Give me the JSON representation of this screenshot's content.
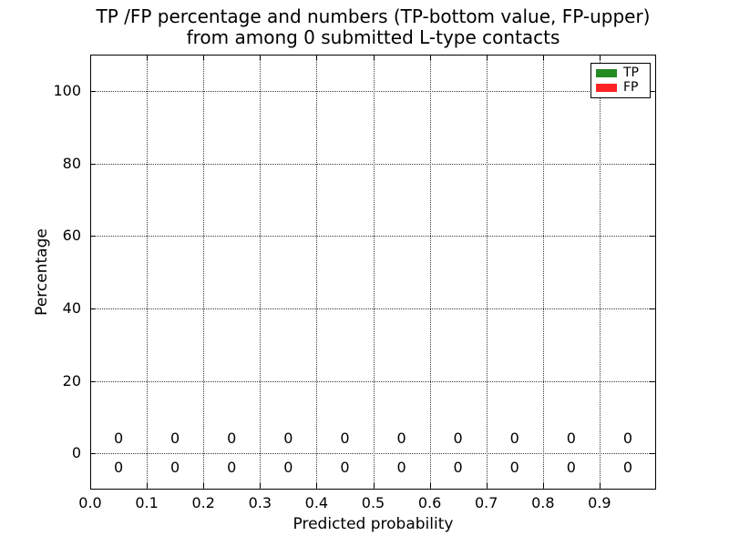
{
  "figure": {
    "background": "#ffffff",
    "text_color": "#000000"
  },
  "chart_data": {
    "type": "bar",
    "title": "TP /FP percentage and numbers (TP-bottom value, FP-upper) from among 0 submitted L-type contacts",
    "title_line1": "TP /FP percentage and numbers (TP-bottom value, FP-upper)",
    "title_line2": "from among 0 submitted L-type contacts",
    "xlabel": "Predicted probability",
    "ylabel": "Percentage",
    "xlim": [
      0.0,
      1.0
    ],
    "ylim": [
      -10,
      110
    ],
    "xticks": [
      {
        "value": 0.0,
        "label": "0.0"
      },
      {
        "value": 0.1,
        "label": "0.1"
      },
      {
        "value": 0.2,
        "label": "0.2"
      },
      {
        "value": 0.3,
        "label": "0.3"
      },
      {
        "value": 0.4,
        "label": "0.4"
      },
      {
        "value": 0.5,
        "label": "0.5"
      },
      {
        "value": 0.6,
        "label": "0.6"
      },
      {
        "value": 0.7,
        "label": "0.7"
      },
      {
        "value": 0.8,
        "label": "0.8"
      },
      {
        "value": 0.9,
        "label": "0.9"
      }
    ],
    "yticks": [
      {
        "value": 0,
        "label": "0"
      },
      {
        "value": 20,
        "label": "20"
      },
      {
        "value": 40,
        "label": "40"
      },
      {
        "value": 60,
        "label": "60"
      },
      {
        "value": 80,
        "label": "80"
      },
      {
        "value": 100,
        "label": "100"
      }
    ],
    "grid": {
      "visible": true,
      "style": "dotted",
      "color": "#3a3a3a"
    },
    "bin_centers": [
      0.05,
      0.15,
      0.25,
      0.35,
      0.45,
      0.55,
      0.65,
      0.75,
      0.85,
      0.95
    ],
    "series": [
      {
        "name": "TP",
        "color": "#228b22",
        "values": [
          0,
          0,
          0,
          0,
          0,
          0,
          0,
          0,
          0,
          0
        ]
      },
      {
        "name": "FP",
        "color": "#ff2222",
        "values": [
          0,
          0,
          0,
          0,
          0,
          0,
          0,
          0,
          0,
          0
        ]
      }
    ],
    "annotations": {
      "fp_labels": [
        "0",
        "0",
        "0",
        "0",
        "0",
        "0",
        "0",
        "0",
        "0",
        "0"
      ],
      "fp_label_y": 4,
      "tp_labels": [
        "0",
        "0",
        "0",
        "0",
        "0",
        "0",
        "0",
        "0",
        "0",
        "0"
      ],
      "tp_label_y": -4
    },
    "legend": {
      "position": "upper right",
      "items": [
        {
          "label": "TP",
          "color": "#228b22"
        },
        {
          "label": "FP",
          "color": "#ff2222"
        }
      ]
    }
  }
}
